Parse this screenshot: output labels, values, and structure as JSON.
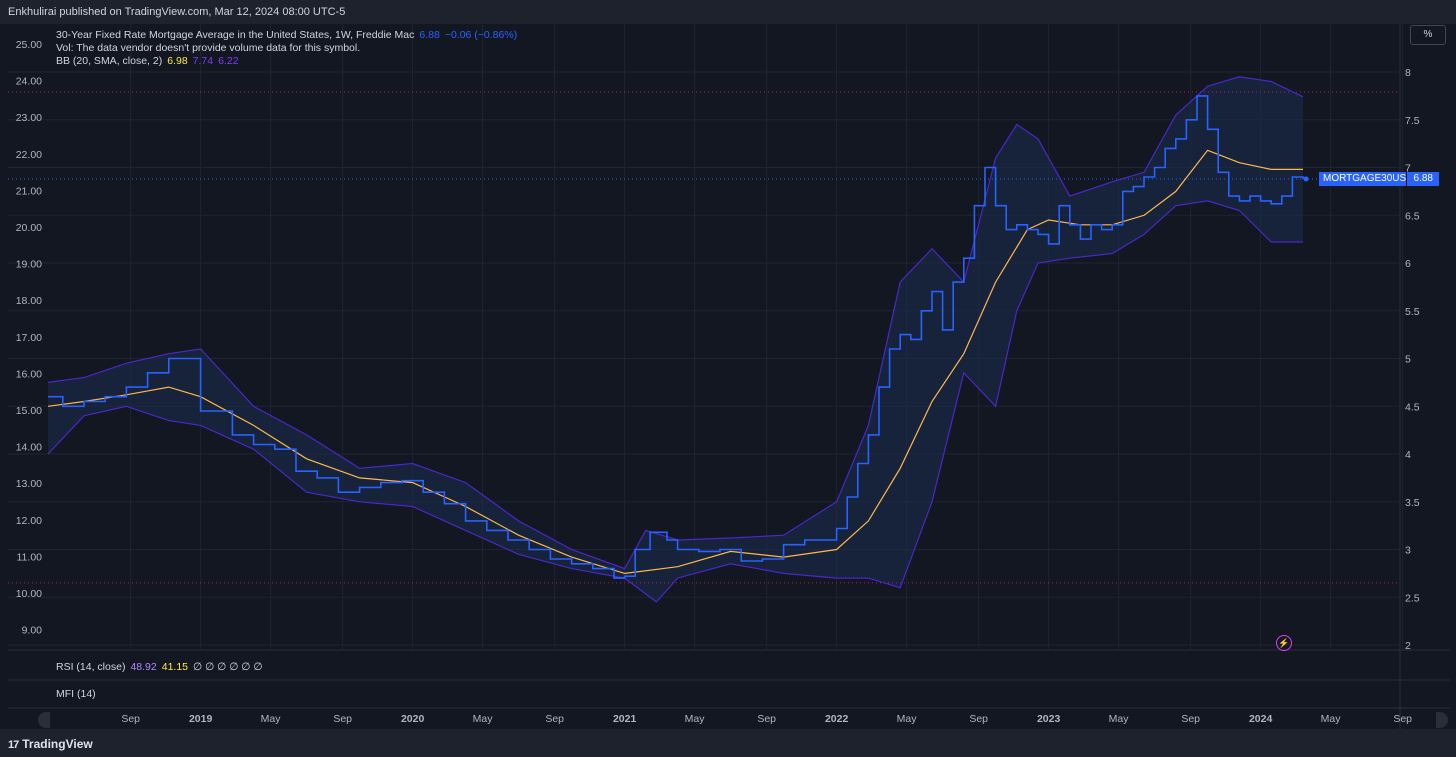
{
  "header": {
    "published": "Enkhulirai published on TradingView.com, Mar 12, 2024 08:00 UTC-5"
  },
  "legend": {
    "title": "30-Year Fixed Rate Mortgage Average in the United States, 1W, Freddie Mac",
    "last": "6.88",
    "change": "−0.06 (−0.86%)",
    "vol_note": "Vol: The data vendor doesn't provide volume data for this symbol.",
    "bb_label": "BB (20, SMA, close, 2)",
    "bb_basis": "6.98",
    "bb_upper": "7.74",
    "bb_lower": "6.22"
  },
  "rsi": {
    "label": "RSI (14, close)",
    "v1": "48.92",
    "v2": "41.15",
    "na": "∅ ∅ ∅ ∅ ∅ ∅"
  },
  "mfi": {
    "label": "MFI (14)"
  },
  "percent_button": "%",
  "price_tag": {
    "symbol": "MORTGAGE30US",
    "value": "6.88"
  },
  "footer": {
    "brand": "TradingView",
    "brand_mark": "17"
  },
  "colors": {
    "price": "#2962ff",
    "basis": "#ffb74d",
    "band": "#4a27c9",
    "band_fill": "#1a2d4f",
    "hline": "#c2185b",
    "tag": "#2962ff"
  },
  "chart_data": {
    "type": "line",
    "title": "30-Year Fixed Rate Mortgage Average in the United States, 1W, Freddie Mac",
    "right_axis": {
      "ticks": [
        "8",
        "7.5",
        "7",
        "6.5",
        "6",
        "5.5",
        "5",
        "4.5",
        "4",
        "3.5",
        "3",
        "2.5",
        "2"
      ],
      "ylim": [
        2,
        8
      ]
    },
    "left_axis": {
      "ticks": [
        "25.00",
        "24.00",
        "23.00",
        "22.00",
        "21.00",
        "20.00",
        "19.00",
        "18.00",
        "17.00",
        "16.00",
        "15.00",
        "14.00",
        "13.00",
        "12.00",
        "11.00",
        "10.00",
        "9.00"
      ],
      "ylim": [
        9,
        25
      ]
    },
    "x_ticks": [
      {
        "label": "Sep",
        "x": 2018.67,
        "bold": false
      },
      {
        "label": "2019",
        "x": 2019.0,
        "bold": true
      },
      {
        "label": "May",
        "x": 2019.33,
        "bold": false
      },
      {
        "label": "Sep",
        "x": 2019.67,
        "bold": false
      },
      {
        "label": "2020",
        "x": 2020.0,
        "bold": true
      },
      {
        "label": "May",
        "x": 2020.33,
        "bold": false
      },
      {
        "label": "Sep",
        "x": 2020.67,
        "bold": false
      },
      {
        "label": "2021",
        "x": 2021.0,
        "bold": true
      },
      {
        "label": "May",
        "x": 2021.33,
        "bold": false
      },
      {
        "label": "Sep",
        "x": 2021.67,
        "bold": false
      },
      {
        "label": "2022",
        "x": 2022.0,
        "bold": true
      },
      {
        "label": "May",
        "x": 2022.33,
        "bold": false
      },
      {
        "label": "Sep",
        "x": 2022.67,
        "bold": false
      },
      {
        "label": "2023",
        "x": 2023.0,
        "bold": true
      },
      {
        "label": "May",
        "x": 2023.33,
        "bold": false
      },
      {
        "label": "Sep",
        "x": 2023.67,
        "bold": false
      },
      {
        "label": "2024",
        "x": 2024.0,
        "bold": true
      },
      {
        "label": "May",
        "x": 2024.33,
        "bold": false
      },
      {
        "label": "Sep",
        "x": 2024.67,
        "bold": false
      }
    ],
    "xlim": [
      2018.28,
      2024.71
    ],
    "horizontal_lines": [
      7.79,
      2.65
    ],
    "last_value_line": 6.88,
    "series": [
      {
        "name": "MORTGAGE30US",
        "x": [
          2018.28,
          2018.35,
          2018.45,
          2018.55,
          2018.65,
          2018.75,
          2018.85,
          2019.0,
          2019.15,
          2019.25,
          2019.35,
          2019.45,
          2019.55,
          2019.65,
          2019.75,
          2019.85,
          2019.95,
          2020.05,
          2020.15,
          2020.25,
          2020.35,
          2020.45,
          2020.55,
          2020.65,
          2020.75,
          2020.85,
          2020.95,
          2021.0,
          2021.05,
          2021.12,
          2021.2,
          2021.25,
          2021.35,
          2021.45,
          2021.55,
          2021.65,
          2021.75,
          2021.85,
          2021.95,
          2022.0,
          2022.05,
          2022.1,
          2022.15,
          2022.2,
          2022.25,
          2022.3,
          2022.35,
          2022.4,
          2022.45,
          2022.5,
          2022.55,
          2022.6,
          2022.65,
          2022.7,
          2022.75,
          2022.8,
          2022.85,
          2022.9,
          2022.95,
          2023.0,
          2023.05,
          2023.1,
          2023.15,
          2023.2,
          2023.25,
          2023.3,
          2023.35,
          2023.4,
          2023.45,
          2023.5,
          2023.55,
          2023.6,
          2023.65,
          2023.7,
          2023.75,
          2023.8,
          2023.85,
          2023.9,
          2023.95,
          2024.0,
          2024.05,
          2024.1,
          2024.15,
          2024.2
        ],
        "values": [
          4.6,
          4.5,
          4.55,
          4.6,
          4.7,
          4.85,
          5.0,
          4.45,
          4.2,
          4.1,
          4.05,
          3.82,
          3.75,
          3.6,
          3.65,
          3.7,
          3.72,
          3.6,
          3.48,
          3.3,
          3.2,
          3.1,
          3.0,
          2.9,
          2.85,
          2.8,
          2.7,
          2.72,
          3.0,
          3.18,
          3.1,
          3.0,
          2.98,
          3.0,
          2.88,
          2.9,
          3.05,
          3.1,
          3.1,
          3.22,
          3.55,
          3.9,
          4.2,
          4.7,
          5.1,
          5.25,
          5.2,
          5.5,
          5.7,
          5.3,
          5.8,
          6.05,
          6.6,
          7.0,
          6.6,
          6.35,
          6.4,
          6.35,
          6.3,
          6.2,
          6.6,
          6.4,
          6.25,
          6.4,
          6.35,
          6.4,
          6.75,
          6.8,
          6.9,
          7.0,
          7.2,
          7.3,
          7.5,
          7.75,
          7.4,
          6.95,
          6.7,
          6.65,
          6.7,
          6.65,
          6.62,
          6.7,
          6.9,
          6.88
        ]
      },
      {
        "name": "BB basis",
        "x": [
          2018.28,
          2018.45,
          2018.65,
          2018.85,
          2019.0,
          2019.25,
          2019.5,
          2019.75,
          2020.0,
          2020.25,
          2020.5,
          2020.75,
          2021.0,
          2021.25,
          2021.5,
          2021.75,
          2022.0,
          2022.15,
          2022.3,
          2022.45,
          2022.6,
          2022.75,
          2022.9,
          2023.0,
          2023.15,
          2023.3,
          2023.45,
          2023.6,
          2023.75,
          2023.9,
          2024.05,
          2024.2
        ],
        "values": [
          4.5,
          4.55,
          4.62,
          4.7,
          4.6,
          4.3,
          3.95,
          3.75,
          3.7,
          3.45,
          3.15,
          2.92,
          2.75,
          2.82,
          2.98,
          2.92,
          3.0,
          3.3,
          3.85,
          4.55,
          5.05,
          5.8,
          6.35,
          6.45,
          6.4,
          6.4,
          6.5,
          6.75,
          7.18,
          7.05,
          6.98,
          6.98
        ]
      },
      {
        "name": "BB upper",
        "x": [
          2018.28,
          2018.45,
          2018.65,
          2018.85,
          2019.0,
          2019.25,
          2019.5,
          2019.75,
          2020.0,
          2020.25,
          2020.5,
          2020.75,
          2021.0,
          2021.1,
          2021.25,
          2021.5,
          2021.75,
          2022.0,
          2022.15,
          2022.3,
          2022.45,
          2022.6,
          2022.75,
          2022.85,
          2022.95,
          2023.1,
          2023.3,
          2023.45,
          2023.6,
          2023.75,
          2023.9,
          2024.05,
          2024.2
        ],
        "values": [
          4.75,
          4.8,
          4.95,
          5.05,
          5.1,
          4.5,
          4.2,
          3.85,
          3.9,
          3.7,
          3.3,
          3.0,
          2.8,
          3.2,
          3.1,
          3.12,
          3.15,
          3.5,
          4.3,
          5.8,
          6.15,
          5.8,
          7.1,
          7.45,
          7.3,
          6.7,
          6.85,
          6.95,
          7.55,
          7.85,
          7.95,
          7.9,
          7.74
        ]
      },
      {
        "name": "BB lower",
        "x": [
          2018.28,
          2018.45,
          2018.65,
          2018.85,
          2019.0,
          2019.25,
          2019.5,
          2019.75,
          2020.0,
          2020.25,
          2020.5,
          2020.75,
          2021.0,
          2021.15,
          2021.25,
          2021.5,
          2021.75,
          2022.0,
          2022.15,
          2022.3,
          2022.45,
          2022.6,
          2022.75,
          2022.85,
          2022.95,
          2023.1,
          2023.3,
          2023.45,
          2023.6,
          2023.75,
          2023.9,
          2024.05,
          2024.2
        ],
        "values": [
          4.0,
          4.4,
          4.5,
          4.35,
          4.3,
          4.05,
          3.6,
          3.5,
          3.45,
          3.2,
          2.95,
          2.8,
          2.7,
          2.45,
          2.7,
          2.85,
          2.75,
          2.7,
          2.7,
          2.6,
          3.5,
          4.85,
          4.5,
          5.5,
          6.0,
          6.05,
          6.1,
          6.3,
          6.6,
          6.65,
          6.55,
          6.22,
          6.22
        ]
      }
    ]
  }
}
